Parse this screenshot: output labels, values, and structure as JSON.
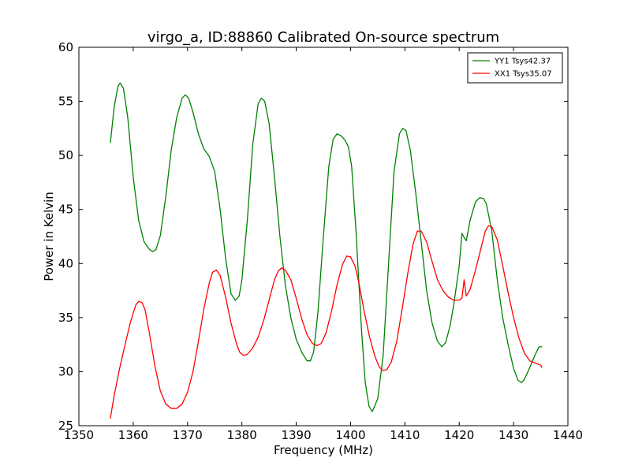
{
  "chart_data": {
    "type": "line",
    "title": "virgo_a, ID:88860 Calibrated On-source spectrum",
    "xlabel": "Frequency (MHz)",
    "ylabel": "Power in Kelvin",
    "xlim": [
      1350,
      1440
    ],
    "ylim": [
      25,
      60
    ],
    "xticks": [
      1350,
      1360,
      1370,
      1380,
      1390,
      1400,
      1410,
      1420,
      1430,
      1440
    ],
    "yticks": [
      25,
      30,
      35,
      40,
      45,
      50,
      55,
      60
    ],
    "grid": false,
    "legend_position": "top-right",
    "series": [
      {
        "name": "YY1 Tsys42.37",
        "color": "#008000",
        "x": [
          1355.8,
          1356.5,
          1357.2,
          1357.6,
          1358.2,
          1359.0,
          1360.0,
          1361.0,
          1362.0,
          1363.0,
          1363.6,
          1364.2,
          1365.0,
          1366.0,
          1367.0,
          1368.0,
          1369.0,
          1369.6,
          1370.2,
          1371.0,
          1372.0,
          1373.0,
          1374.0,
          1375.0,
          1376.0,
          1377.0,
          1378.0,
          1378.8,
          1379.5,
          1380.0,
          1381.0,
          1382.0,
          1383.0,
          1383.6,
          1384.2,
          1385.0,
          1386.0,
          1387.0,
          1388.0,
          1389.0,
          1390.0,
          1391.0,
          1392.0,
          1392.6,
          1393.2,
          1394.0,
          1395.0,
          1396.0,
          1396.8,
          1397.5,
          1398.3,
          1399.0,
          1399.6,
          1400.2,
          1401.0,
          1402.0,
          1402.7,
          1403.4,
          1404.0,
          1405.0,
          1406.0,
          1407.0,
          1408.0,
          1409.0,
          1409.6,
          1410.2,
          1411.0,
          1412.0,
          1413.0,
          1414.0,
          1415.0,
          1416.0,
          1416.8,
          1417.5,
          1418.3,
          1419.0,
          1420.0,
          1420.5,
          1420.9,
          1421.3,
          1422.0,
          1423.0,
          1423.8,
          1424.5,
          1425.0,
          1426.0,
          1427.0,
          1428.0,
          1429.0,
          1430.0,
          1430.8,
          1431.5,
          1432.0,
          1433.0,
          1434.0,
          1434.7,
          1435.2
        ],
        "y": [
          51.2,
          54.5,
          56.4,
          56.7,
          56.2,
          53.5,
          48.0,
          44.0,
          42.0,
          41.3,
          41.1,
          41.3,
          42.6,
          46.2,
          50.5,
          53.5,
          55.3,
          55.6,
          55.3,
          54.0,
          52.0,
          50.6,
          49.9,
          48.5,
          45.0,
          40.5,
          37.2,
          36.6,
          37.0,
          38.5,
          44.0,
          51.0,
          54.8,
          55.3,
          55.0,
          53.0,
          48.0,
          42.5,
          38.0,
          35.0,
          33.0,
          31.8,
          31.0,
          31.0,
          31.8,
          35.5,
          42.5,
          49.0,
          51.5,
          52.0,
          51.8,
          51.4,
          50.8,
          49.0,
          43.0,
          34.0,
          29.0,
          26.8,
          26.3,
          27.5,
          31.5,
          40.0,
          48.5,
          52.0,
          52.5,
          52.3,
          50.5,
          46.5,
          42.0,
          37.5,
          34.5,
          32.8,
          32.3,
          32.7,
          34.2,
          36.2,
          39.8,
          42.8,
          42.4,
          42.1,
          44.0,
          45.7,
          46.1,
          46.0,
          45.5,
          43.0,
          38.5,
          35.0,
          32.5,
          30.3,
          29.2,
          29.0,
          29.3,
          30.4,
          31.6,
          32.3,
          32.3
        ]
      },
      {
        "name": "XX1 Tsys35.07",
        "color": "#ff0000",
        "x": [
          1355.8,
          1356.5,
          1357.5,
          1358.5,
          1359.5,
          1360.5,
          1361.0,
          1361.6,
          1362.2,
          1363.0,
          1364.0,
          1365.0,
          1366.0,
          1367.0,
          1368.0,
          1369.0,
          1370.0,
          1371.0,
          1372.0,
          1373.0,
          1374.0,
          1374.6,
          1375.3,
          1376.0,
          1377.0,
          1378.0,
          1379.0,
          1379.6,
          1380.3,
          1381.0,
          1382.0,
          1383.0,
          1384.0,
          1385.0,
          1386.0,
          1386.7,
          1387.3,
          1388.0,
          1389.0,
          1390.0,
          1391.0,
          1392.0,
          1393.0,
          1393.8,
          1394.6,
          1395.5,
          1396.5,
          1397.5,
          1398.5,
          1399.3,
          1400.0,
          1400.8,
          1401.5,
          1402.5,
          1403.5,
          1404.5,
          1405.3,
          1406.0,
          1406.7,
          1407.5,
          1408.5,
          1409.5,
          1410.5,
          1411.5,
          1412.3,
          1413.0,
          1414.0,
          1415.0,
          1416.0,
          1417.0,
          1418.0,
          1419.0,
          1420.0,
          1420.5,
          1420.9,
          1421.3,
          1422.0,
          1423.0,
          1424.0,
          1424.8,
          1425.4,
          1426.0,
          1427.0,
          1428.0,
          1429.0,
          1430.0,
          1431.0,
          1432.0,
          1433.0,
          1434.0,
          1435.0,
          1435.2
        ],
        "y": [
          25.7,
          27.8,
          30.3,
          32.5,
          34.6,
          36.2,
          36.5,
          36.4,
          35.7,
          33.5,
          30.5,
          28.2,
          27.0,
          26.6,
          26.6,
          27.0,
          28.1,
          30.0,
          32.8,
          35.8,
          38.2,
          39.2,
          39.4,
          38.9,
          36.9,
          34.5,
          32.6,
          31.8,
          31.5,
          31.6,
          32.2,
          33.2,
          34.7,
          36.6,
          38.5,
          39.3,
          39.6,
          39.4,
          38.5,
          36.8,
          34.9,
          33.4,
          32.6,
          32.4,
          32.6,
          33.6,
          35.6,
          38.0,
          39.9,
          40.7,
          40.6,
          39.8,
          38.3,
          35.6,
          33.2,
          31.4,
          30.4,
          30.1,
          30.2,
          30.9,
          32.8,
          35.8,
          39.0,
          41.8,
          43.0,
          43.0,
          42.0,
          40.2,
          38.5,
          37.5,
          36.9,
          36.6,
          36.6,
          36.8,
          38.5,
          37.0,
          37.6,
          39.4,
          41.4,
          43.0,
          43.5,
          43.4,
          42.2,
          39.8,
          37.3,
          35.0,
          33.1,
          31.7,
          31.0,
          30.8,
          30.6,
          30.4
        ]
      }
    ]
  }
}
